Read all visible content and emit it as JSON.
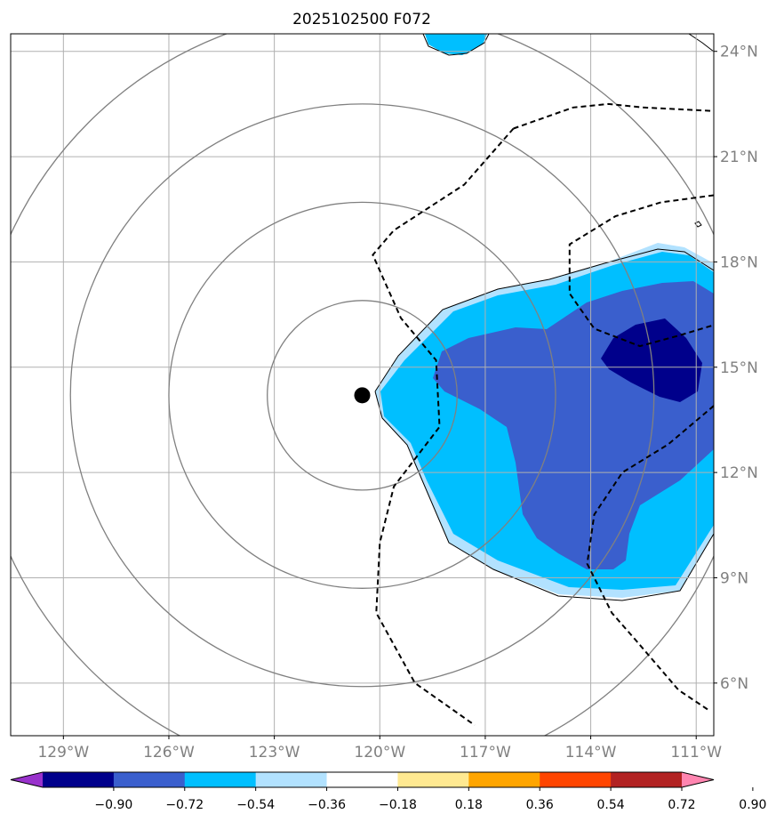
{
  "title": "2025102500 F072",
  "map": {
    "lon_range": [
      -130.5,
      -110.5
    ],
    "lat_range": [
      4.5,
      24.5
    ],
    "lon_ticks": [
      -129,
      -126,
      -123,
      -120,
      -117,
      -114,
      -111
    ],
    "lon_tick_labels": [
      "129°W",
      "126°W",
      "123°W",
      "120°W",
      "117°W",
      "114°W",
      "111°W"
    ],
    "lat_ticks": [
      6,
      9,
      12,
      15,
      18,
      21,
      24
    ],
    "lat_tick_labels": [
      "6°N",
      "9°N",
      "12°N",
      "15°N",
      "18°N",
      "21°N",
      "24°N"
    ],
    "storm_center": {
      "lon": -120.5,
      "lat": 14.2
    },
    "range_rings_deg": [
      2.7,
      5.5,
      8.3,
      11.0
    ],
    "colors": {
      "gridline": "#b0b0b0",
      "ring": "#808080",
      "tick_label": "#808080",
      "contour_line": "#000000",
      "level_-0.36": "#00bfff",
      "level_-0.54": "#3a5fcd",
      "level_-0.72": "#00008b",
      "level_-0.18": "#b2e2ff"
    }
  },
  "contour_lines": [
    {
      "name": "dashed-contour-west",
      "style": "dashed",
      "points": [
        [
          -116.2,
          21.8
        ],
        [
          -117.6,
          20.2
        ],
        [
          -119.6,
          18.9
        ],
        [
          -120.2,
          18.2
        ],
        [
          -119.4,
          16.4
        ],
        [
          -118.4,
          15.2
        ],
        [
          -118.3,
          13.3
        ],
        [
          -119.6,
          11.6
        ],
        [
          -120.0,
          10.0
        ],
        [
          -120.1,
          8.0
        ],
        [
          -119.0,
          6.0
        ],
        [
          -117.3,
          4.8
        ]
      ]
    },
    {
      "name": "dashed-contour-north",
      "style": "dashed",
      "points": [
        [
          -116.2,
          21.8
        ],
        [
          -114.5,
          22.4
        ],
        [
          -113.5,
          22.5
        ],
        [
          -112.5,
          22.4
        ],
        [
          -110.5,
          22.3
        ]
      ]
    },
    {
      "name": "dashed-contour-east-upper",
      "style": "dashed",
      "points": [
        [
          -110.5,
          19.9
        ],
        [
          -112.0,
          19.7
        ],
        [
          -113.3,
          19.3
        ],
        [
          -114.6,
          18.5
        ],
        [
          -114.6,
          17.1
        ],
        [
          -113.9,
          16.1
        ],
        [
          -112.6,
          15.6
        ],
        [
          -111.5,
          15.9
        ],
        [
          -110.5,
          16.2
        ]
      ]
    },
    {
      "name": "dashed-contour-east-lower",
      "style": "dashed",
      "points": [
        [
          -110.5,
          13.9
        ],
        [
          -111.8,
          12.8
        ],
        [
          -113.1,
          12.0
        ],
        [
          -113.9,
          10.8
        ],
        [
          -114.1,
          9.4
        ],
        [
          -113.4,
          8.0
        ],
        [
          -112.7,
          7.2
        ],
        [
          -111.5,
          5.8
        ],
        [
          -110.6,
          5.2
        ]
      ]
    }
  ],
  "colorbar": {
    "levels": [
      "−0.90",
      "−0.72",
      "−0.54",
      "−0.36",
      "−0.18",
      "0.18",
      "0.36",
      "0.54",
      "0.72",
      "0.90"
    ],
    "colors": [
      "#9932cc",
      "#00008b",
      "#3a5fcd",
      "#00bfff",
      "#b2e2ff",
      "#ffffff",
      "#ffe991",
      "#ffa500",
      "#ff4500",
      "#b22222",
      "#ff85b0"
    ]
  }
}
